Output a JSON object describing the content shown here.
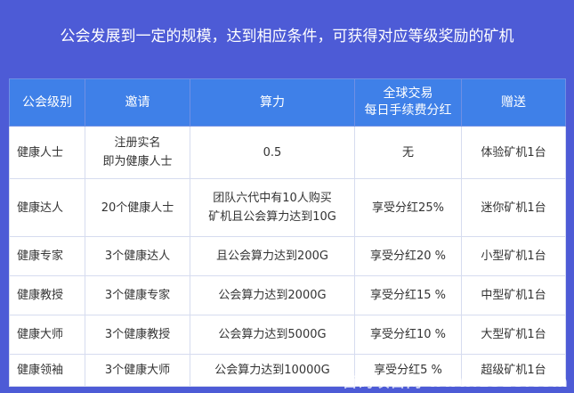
{
  "header": {
    "title": "公会发展到一定的规模，达到相应条件，可获得对应等级奖励的矿机"
  },
  "table": {
    "columns": [
      [
        "公会级别"
      ],
      [
        "邀请"
      ],
      [
        "算力"
      ],
      [
        "全球交易",
        "每日手续费分红"
      ],
      [
        "赠送"
      ]
    ],
    "rows": [
      [
        [
          "健康人士"
        ],
        [
          "注册实名",
          "即为健康人士"
        ],
        [
          "0.5"
        ],
        [
          "无"
        ],
        [
          "体验矿机1台"
        ]
      ],
      [
        [
          "健康达人"
        ],
        [
          "20个健康人士"
        ],
        [
          "团队六代中有10人购买",
          "矿机且公会算力达到10G"
        ],
        [
          "享受分红25%"
        ],
        [
          "迷你矿机1台"
        ]
      ],
      [
        [
          "健康专家"
        ],
        [
          "3个健康达人"
        ],
        [
          "且公会算力达到200G"
        ],
        [
          "享受分红20 %"
        ],
        [
          "小型矿机1台"
        ]
      ],
      [
        [
          "健康教授"
        ],
        [
          "3个健康专家"
        ],
        [
          "公会算力达到2000G"
        ],
        [
          "享受分红15 %"
        ],
        [
          "中型矿机1台"
        ]
      ],
      [
        [
          "健康大师"
        ],
        [
          "3个健康教授"
        ],
        [
          "公会算力达到5000G"
        ],
        [
          "享受分红10 %"
        ],
        [
          "大型矿机1台"
        ]
      ],
      [
        [
          "健康领袖"
        ],
        [
          "3个健康大师"
        ],
        [
          "公会算力达到10000G"
        ],
        [
          "享受分红5 %"
        ],
        [
          "超级矿机1台"
        ]
      ]
    ]
  },
  "watermark": "首码项目网 www.E518.com"
}
